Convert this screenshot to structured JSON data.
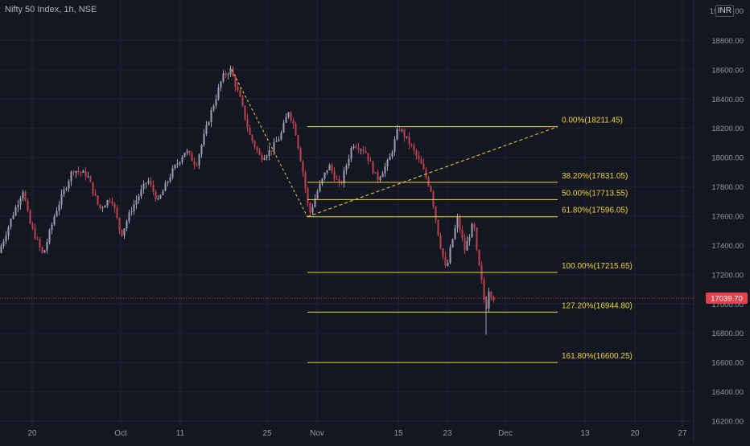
{
  "header": {
    "title": "Nifty 50 Index, 1h, NSE",
    "currency": "INR"
  },
  "colors": {
    "background": "#131722",
    "grid": "#1f2330",
    "up": "#9aa0ae",
    "down": "#c2414e",
    "fib": "#f2d23b",
    "price_line": "#e0414b",
    "axis_text": "#9598a1"
  },
  "chart_data": {
    "type": "candlestick",
    "instrument": "Nifty 50 Index",
    "interval": "1h",
    "exchange": "NSE",
    "y_axis": {
      "range": [
        16200,
        19000
      ],
      "ticks": [
        16200,
        16400,
        16600,
        16800,
        17000,
        17200,
        17400,
        17600,
        17800,
        18000,
        18200,
        18400,
        18600,
        18800
      ],
      "top_label": "19 000.00",
      "tick_labels": [
        "16200.00",
        "16400.00",
        "16600.00",
        "16800.00",
        "17000.00",
        "17200.00",
        "17400.00",
        "17600.00",
        "17800.00",
        "18000.00",
        "18200.00",
        "18400.00",
        "18600.00",
        "18800.00"
      ]
    },
    "x_axis": {
      "labels": [
        "20",
        "Oct",
        "11",
        "25",
        "Nov",
        "15",
        "23",
        "Dec",
        "13",
        "20",
        "27"
      ]
    },
    "price_path": [
      {
        "x": 0,
        "y": 17350
      },
      {
        "x": 16,
        "y": 17590
      },
      {
        "x": 30,
        "y": 17780
      },
      {
        "x": 38,
        "y": 17560
      },
      {
        "x": 55,
        "y": 17330
      },
      {
        "x": 70,
        "y": 17620
      },
      {
        "x": 92,
        "y": 17920
      },
      {
        "x": 110,
        "y": 17880
      },
      {
        "x": 125,
        "y": 17650
      },
      {
        "x": 140,
        "y": 17730
      },
      {
        "x": 152,
        "y": 17470
      },
      {
        "x": 165,
        "y": 17650
      },
      {
        "x": 185,
        "y": 17850
      },
      {
        "x": 198,
        "y": 17700
      },
      {
        "x": 215,
        "y": 17900
      },
      {
        "x": 232,
        "y": 18050
      },
      {
        "x": 245,
        "y": 17950
      },
      {
        "x": 262,
        "y": 18280
      },
      {
        "x": 278,
        "y": 18550
      },
      {
        "x": 288,
        "y": 18600
      },
      {
        "x": 300,
        "y": 18400
      },
      {
        "x": 312,
        "y": 18150
      },
      {
        "x": 325,
        "y": 18000
      },
      {
        "x": 338,
        "y": 18050
      },
      {
        "x": 350,
        "y": 18150
      },
      {
        "x": 360,
        "y": 18320
      },
      {
        "x": 368,
        "y": 18200
      },
      {
        "x": 378,
        "y": 17900
      },
      {
        "x": 386,
        "y": 17610
      },
      {
        "x": 396,
        "y": 17770
      },
      {
        "x": 410,
        "y": 17950
      },
      {
        "x": 424,
        "y": 17800
      },
      {
        "x": 440,
        "y": 18100
      },
      {
        "x": 455,
        "y": 18050
      },
      {
        "x": 470,
        "y": 17850
      },
      {
        "x": 485,
        "y": 17980
      },
      {
        "x": 497,
        "y": 18210
      },
      {
        "x": 510,
        "y": 18100
      },
      {
        "x": 525,
        "y": 17950
      },
      {
        "x": 537,
        "y": 17780
      },
      {
        "x": 547,
        "y": 17450
      },
      {
        "x": 556,
        "y": 17220
      },
      {
        "x": 562,
        "y": 17400
      },
      {
        "x": 570,
        "y": 17580
      },
      {
        "x": 579,
        "y": 17370
      },
      {
        "x": 590,
        "y": 17560
      },
      {
        "x": 594,
        "y": 17350
      },
      {
        "x": 600,
        "y": 17150
      },
      {
        "x": 605,
        "y": 16950
      },
      {
        "x": 609,
        "y": 17100
      },
      {
        "x": 615,
        "y": 17040
      }
    ],
    "extreme_wicks": [
      {
        "x": 604,
        "low": 16790,
        "high": 17050
      }
    ],
    "last_price": {
      "value": 17039.7,
      "label": "17039.70"
    },
    "drawings": {
      "trend_base": [
        {
          "x": 288,
          "y": 18600
        },
        {
          "x": 382,
          "y": 17596.05
        }
      ],
      "trend_dashed": [
        {
          "x": 382,
          "y": 17596.05
        },
        {
          "x": 693,
          "y": 18211.45
        }
      ],
      "fib_x_start": 382,
      "fib_x_end": 693,
      "fib_levels": [
        {
          "label": "0.00%(18211.45)",
          "price": 18211.45
        },
        {
          "label": "38.20%(17831.05)",
          "price": 17831.05
        },
        {
          "label": "50.00%(17713.55)",
          "price": 17713.55
        },
        {
          "label": "61.80%(17596.05)",
          "price": 17596.05
        },
        {
          "label": "100.00%(17215.65)",
          "price": 17215.65
        },
        {
          "label": "127.20%(16944.80)",
          "price": 16944.8
        },
        {
          "label": "161.80%(16600.25)",
          "price": 16600.25
        }
      ]
    }
  }
}
